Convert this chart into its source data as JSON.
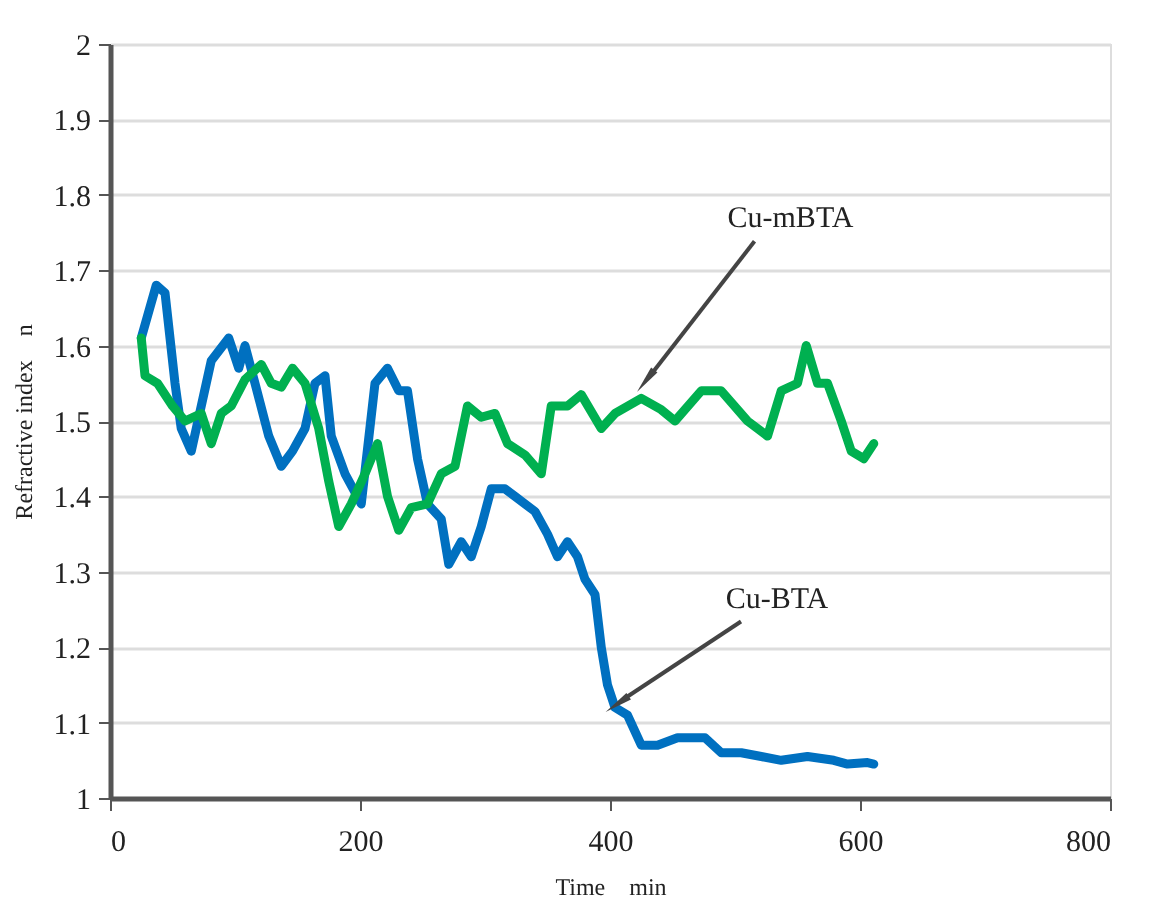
{
  "chart_data": {
    "type": "line",
    "xlabel": "Time　min",
    "ylabel": "Refractive index　n",
    "xlim": [
      0,
      800
    ],
    "xticks": [
      0,
      200,
      400,
      600,
      800
    ],
    "ylim": [
      1,
      2
    ],
    "yticks": [
      1,
      1.1,
      1.2,
      1.3,
      1.4,
      1.5,
      1.6,
      1.7,
      1.8,
      1.9,
      2
    ],
    "grid": "y",
    "line_style": "solid",
    "marker": "none",
    "series": [
      {
        "color": "#0070c0",
        "x": [
          25,
          37,
          44,
          52,
          57,
          65,
          73,
          81,
          95,
          103,
          108,
          116,
          127,
          137,
          146,
          156,
          164,
          172,
          177,
          188,
          201,
          212,
          222,
          231,
          238,
          246,
          254,
          265,
          271,
          281,
          289,
          297,
          305,
          316,
          324,
          340,
          350,
          358,
          366,
          374,
          380,
          388,
          393,
          398,
          404,
          414,
          425,
          438,
          454,
          476,
          489,
          505,
          521,
          537,
          558,
          579,
          590,
          606,
          611
        ],
        "values": [
          1.61,
          1.68,
          1.67,
          1.55,
          1.49,
          1.46,
          1.52,
          1.58,
          1.61,
          1.57,
          1.6,
          1.55,
          1.48,
          1.44,
          1.46,
          1.49,
          1.55,
          1.56,
          1.48,
          1.43,
          1.39,
          1.55,
          1.57,
          1.54,
          1.54,
          1.45,
          1.39,
          1.37,
          1.31,
          1.34,
          1.32,
          1.36,
          1.41,
          1.41,
          1.4,
          1.38,
          1.35,
          1.32,
          1.34,
          1.32,
          1.29,
          1.27,
          1.2,
          1.15,
          1.12,
          1.11,
          1.07,
          1.07,
          1.08,
          1.08,
          1.06,
          1.06,
          1.055,
          1.05,
          1.055,
          1.05,
          1.045,
          1.047,
          1.045
        ]
      },
      {
        "color": "#00b050",
        "x": [
          25,
          28,
          38,
          50,
          60,
          73,
          81,
          89,
          97,
          108,
          121,
          129,
          137,
          146,
          156,
          167,
          175,
          183,
          193,
          204,
          214,
          222,
          231,
          241,
          254,
          265,
          276,
          286,
          297,
          308,
          318,
          332,
          345,
          353,
          366,
          377,
          393,
          404,
          425,
          441,
          452,
          473,
          489,
          510,
          526,
          537,
          550,
          557,
          566,
          574,
          585,
          593,
          603,
          611
        ],
        "values": [
          1.61,
          1.56,
          1.55,
          1.52,
          1.5,
          1.51,
          1.47,
          1.51,
          1.52,
          1.555,
          1.575,
          1.55,
          1.545,
          1.57,
          1.55,
          1.49,
          1.42,
          1.36,
          1.39,
          1.43,
          1.47,
          1.4,
          1.355,
          1.385,
          1.39,
          1.43,
          1.44,
          1.52,
          1.505,
          1.51,
          1.47,
          1.455,
          1.43,
          1.52,
          1.52,
          1.535,
          1.49,
          1.51,
          1.53,
          1.515,
          1.5,
          1.54,
          1.54,
          1.5,
          1.48,
          1.54,
          1.55,
          1.6,
          1.55,
          1.55,
          1.5,
          1.46,
          1.45,
          1.47
        ]
      }
    ],
    "annotations": [
      {
        "text": "Cu-mBTA",
        "x": 426,
        "y": 1.55
      },
      {
        "text": "Cu-BTA",
        "x": 404,
        "y": 1.12
      }
    ]
  }
}
